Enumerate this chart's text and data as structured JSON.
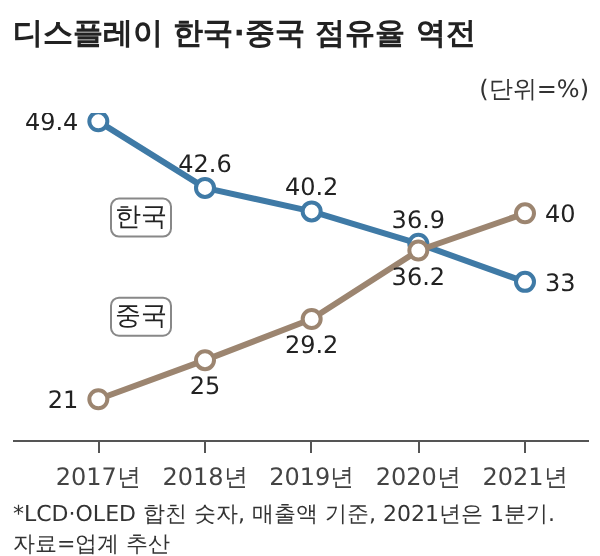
{
  "chart_data": {
    "type": "line",
    "title": "디스플레이 한국·중국 점유율 역전",
    "subtitle": "(단위=%)",
    "categories": [
      "2017년",
      "2018년",
      "2019년",
      "2020년",
      "2021년"
    ],
    "series": [
      {
        "name": "한국",
        "color": "#3f7aa6",
        "values": [
          49.4,
          42.6,
          40.2,
          36.9,
          33
        ]
      },
      {
        "name": "중국",
        "color": "#9c8570",
        "values": [
          21,
          25,
          29.2,
          36.2,
          40
        ]
      }
    ],
    "data_labels": true,
    "marker": "circle",
    "line_style": "solid",
    "grid": false,
    "annotations": [
      "*LCD·OLED 합친 숫자, 매출액 기준, 2021년은 1분기.",
      "자료=업계 추산"
    ]
  }
}
